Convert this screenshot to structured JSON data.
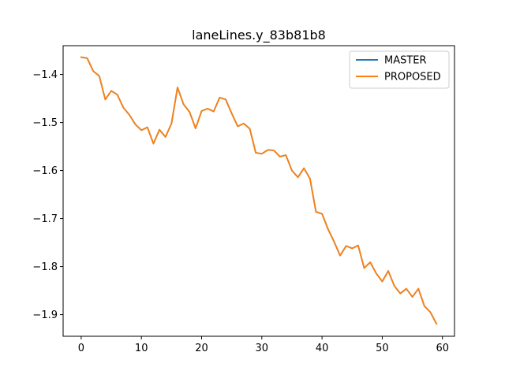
{
  "chart_data": {
    "type": "line",
    "title": "laneLines.y_83b81b8",
    "xlabel": "",
    "ylabel": "",
    "xlim": [
      -3,
      62
    ],
    "ylim": [
      -1.945,
      -1.34
    ],
    "xticks": [
      0,
      10,
      20,
      30,
      40,
      50,
      60
    ],
    "xtick_labels": [
      "0",
      "10",
      "20",
      "30",
      "40",
      "50",
      "60"
    ],
    "yticks": [
      -1.4,
      -1.5,
      -1.6,
      -1.7,
      -1.8,
      -1.9
    ],
    "ytick_labels": [
      "−1.4",
      "−1.5",
      "−1.6",
      "−1.7",
      "−1.8",
      "−1.9"
    ],
    "grid": false,
    "legend_position": "top-right",
    "x": [
      0,
      1,
      2,
      3,
      4,
      5,
      6,
      7,
      8,
      9,
      10,
      11,
      12,
      13,
      14,
      15,
      16,
      17,
      18,
      19,
      20,
      21,
      22,
      23,
      24,
      25,
      26,
      27,
      28,
      29,
      30,
      31,
      32,
      33,
      34,
      35,
      36,
      37,
      38,
      39,
      40,
      41,
      42,
      43,
      44,
      45,
      46,
      47,
      48,
      49,
      50,
      51,
      52,
      53,
      54,
      55,
      56,
      57,
      58,
      59
    ],
    "series": [
      {
        "name": "MASTER",
        "color": "#1f77b4",
        "values": [
          -1.364,
          -1.366,
          -1.393,
          -1.403,
          -1.452,
          -1.434,
          -1.442,
          -1.469,
          -1.484,
          -1.504,
          -1.516,
          -1.51,
          -1.544,
          -1.515,
          -1.53,
          -1.502,
          -1.427,
          -1.462,
          -1.478,
          -1.512,
          -1.476,
          -1.471,
          -1.477,
          -1.448,
          -1.452,
          -1.481,
          -1.508,
          -1.502,
          -1.513,
          -1.563,
          -1.565,
          -1.557,
          -1.558,
          -1.571,
          -1.568,
          -1.6,
          -1.614,
          -1.595,
          -1.617,
          -1.686,
          -1.69,
          -1.722,
          -1.748,
          -1.777,
          -1.757,
          -1.762,
          -1.756,
          -1.803,
          -1.791,
          -1.814,
          -1.831,
          -1.809,
          -1.84,
          -1.856,
          -1.846,
          -1.863,
          -1.846,
          -1.882,
          -1.895,
          -1.919
        ]
      },
      {
        "name": "PROPOSED",
        "color": "#ff7f0e",
        "values": [
          -1.364,
          -1.366,
          -1.393,
          -1.403,
          -1.452,
          -1.434,
          -1.442,
          -1.469,
          -1.484,
          -1.504,
          -1.516,
          -1.51,
          -1.544,
          -1.515,
          -1.53,
          -1.502,
          -1.427,
          -1.462,
          -1.478,
          -1.512,
          -1.476,
          -1.471,
          -1.477,
          -1.448,
          -1.452,
          -1.481,
          -1.508,
          -1.502,
          -1.513,
          -1.563,
          -1.565,
          -1.557,
          -1.558,
          -1.571,
          -1.568,
          -1.6,
          -1.614,
          -1.595,
          -1.617,
          -1.686,
          -1.69,
          -1.722,
          -1.748,
          -1.777,
          -1.757,
          -1.762,
          -1.756,
          -1.803,
          -1.791,
          -1.814,
          -1.831,
          -1.809,
          -1.84,
          -1.856,
          -1.846,
          -1.863,
          -1.846,
          -1.882,
          -1.895,
          -1.919
        ]
      }
    ]
  }
}
